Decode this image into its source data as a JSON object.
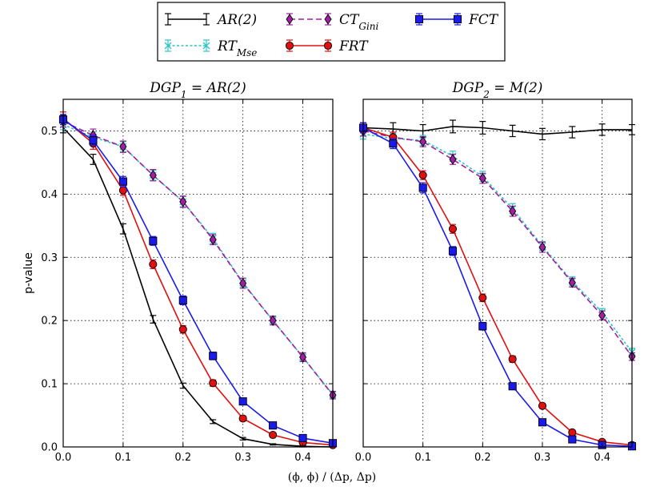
{
  "chart_data": {
    "type": "line",
    "xlabel": "(ϕ, ϕ) / (Δp, Δp)",
    "ylabel": "p-value",
    "xlim": [
      0.0,
      0.45
    ],
    "ylim": [
      0.0,
      0.55
    ],
    "x_ticks": [
      "0.0",
      "0.1",
      "0.2",
      "0.3",
      "0.4"
    ],
    "y_ticks": [
      "0.0",
      "0.1",
      "0.2",
      "0.3",
      "0.4",
      "0.5"
    ],
    "grid": true,
    "legend_position": "top-center",
    "legend": [
      {
        "key": "ar2",
        "name": "AR(2)",
        "base": "AR(2)",
        "sub": "",
        "color": "#000000",
        "marker": "none",
        "dash": false
      },
      {
        "key": "rt",
        "name": "RT_Mse",
        "base": "RT",
        "sub": "Mse",
        "color": "#2ec4c4",
        "marker": "x",
        "dash": true
      },
      {
        "key": "ct",
        "name": "CT_Gini",
        "base": "CT",
        "sub": "Gini",
        "color": "#a020a0",
        "marker": "diamond",
        "dash": true
      },
      {
        "key": "frt",
        "name": "FRT",
        "base": "FRT",
        "sub": "",
        "color": "#e01010",
        "marker": "circle",
        "dash": false
      },
      {
        "key": "fct",
        "name": "FCT",
        "base": "FCT",
        "sub": "",
        "color": "#1a1aee",
        "marker": "square",
        "dash": false
      }
    ],
    "panels": [
      {
        "title_main": "DGP",
        "title_sub": "1",
        "title_rest": " = AR(2)",
        "series": [
          {
            "key": "ar2",
            "x": [
              0.0,
              0.05,
              0.1,
              0.15,
              0.2,
              0.25,
              0.3,
              0.35,
              0.4,
              0.45
            ],
            "y": [
              0.505,
              0.455,
              0.345,
              0.202,
              0.097,
              0.04,
              0.013,
              0.004,
              0.001,
              0.0
            ],
            "err": [
              0.008,
              0.008,
              0.008,
              0.006,
              0.004,
              0.003,
              0.002,
              0.001,
              0.001,
              0.0
            ]
          },
          {
            "key": "rt",
            "x": [
              0.0,
              0.05,
              0.1,
              0.15,
              0.2,
              0.25,
              0.3,
              0.35,
              0.4,
              0.45
            ],
            "y": [
              0.51,
              0.49,
              0.475,
              0.43,
              0.388,
              0.33,
              0.26,
              0.2,
              0.142,
              0.083
            ],
            "err": [
              0.008,
              0.008,
              0.008,
              0.008,
              0.008,
              0.008,
              0.007,
              0.006,
              0.006,
              0.005
            ]
          },
          {
            "key": "ct",
            "x": [
              0.0,
              0.05,
              0.1,
              0.15,
              0.2,
              0.25,
              0.3,
              0.35,
              0.4,
              0.45
            ],
            "y": [
              0.515,
              0.493,
              0.475,
              0.43,
              0.388,
              0.328,
              0.259,
              0.2,
              0.142,
              0.082
            ],
            "err": [
              0.009,
              0.01,
              0.009,
              0.009,
              0.009,
              0.008,
              0.008,
              0.007,
              0.007,
              0.006
            ]
          },
          {
            "key": "frt",
            "x": [
              0.0,
              0.05,
              0.1,
              0.15,
              0.2,
              0.25,
              0.3,
              0.35,
              0.4,
              0.45
            ],
            "y": [
              0.52,
              0.48,
              0.406,
              0.289,
              0.186,
              0.101,
              0.045,
              0.019,
              0.007,
              0.003
            ],
            "err": [
              0.01,
              0.009,
              0.008,
              0.007,
              0.006,
              0.005,
              0.004,
              0.003,
              0.002,
              0.001
            ]
          },
          {
            "key": "fct",
            "x": [
              0.0,
              0.05,
              0.1,
              0.15,
              0.2,
              0.25,
              0.3,
              0.35,
              0.4,
              0.45
            ],
            "y": [
              0.518,
              0.485,
              0.42,
              0.326,
              0.232,
              0.144,
              0.072,
              0.034,
              0.014,
              0.006
            ],
            "err": [
              0.008,
              0.008,
              0.008,
              0.007,
              0.007,
              0.006,
              0.005,
              0.004,
              0.003,
              0.002
            ]
          }
        ]
      },
      {
        "title_main": "DGP",
        "title_sub": "2",
        "title_rest": " = M(2)",
        "series": [
          {
            "key": "ar2",
            "x": [
              0.0,
              0.05,
              0.1,
              0.15,
              0.2,
              0.25,
              0.3,
              0.35,
              0.4,
              0.45
            ],
            "y": [
              0.505,
              0.503,
              0.5,
              0.507,
              0.505,
              0.5,
              0.495,
              0.498,
              0.502,
              0.502
            ],
            "err": [
              0.008,
              0.01,
              0.01,
              0.01,
              0.01,
              0.009,
              0.009,
              0.009,
              0.009,
              0.008
            ]
          },
          {
            "key": "rt",
            "x": [
              0.0,
              0.05,
              0.1,
              0.15,
              0.2,
              0.25,
              0.3,
              0.35,
              0.4,
              0.45
            ],
            "y": [
              0.495,
              0.488,
              0.485,
              0.46,
              0.428,
              0.377,
              0.318,
              0.262,
              0.213,
              0.15
            ],
            "err": [
              0.008,
              0.008,
              0.008,
              0.008,
              0.008,
              0.008,
              0.007,
              0.007,
              0.006,
              0.006
            ]
          },
          {
            "key": "ct",
            "x": [
              0.0,
              0.05,
              0.1,
              0.15,
              0.2,
              0.25,
              0.3,
              0.35,
              0.4,
              0.45
            ],
            "y": [
              0.5,
              0.49,
              0.483,
              0.455,
              0.425,
              0.373,
              0.316,
              0.26,
              0.208,
              0.143
            ],
            "err": [
              0.008,
              0.008,
              0.008,
              0.008,
              0.008,
              0.008,
              0.008,
              0.007,
              0.007,
              0.006
            ]
          },
          {
            "key": "frt",
            "x": [
              0.0,
              0.05,
              0.1,
              0.15,
              0.2,
              0.25,
              0.3,
              0.35,
              0.4,
              0.45
            ],
            "y": [
              0.505,
              0.49,
              0.43,
              0.345,
              0.236,
              0.139,
              0.065,
              0.023,
              0.008,
              0.003
            ],
            "err": [
              0.008,
              0.008,
              0.007,
              0.007,
              0.006,
              0.005,
              0.004,
              0.003,
              0.002,
              0.001
            ]
          },
          {
            "key": "fct",
            "x": [
              0.0,
              0.05,
              0.1,
              0.15,
              0.2,
              0.25,
              0.3,
              0.35,
              0.4,
              0.45
            ],
            "y": [
              0.505,
              0.48,
              0.41,
              0.31,
              0.191,
              0.096,
              0.039,
              0.012,
              0.003,
              0.001
            ],
            "err": [
              0.008,
              0.008,
              0.008,
              0.007,
              0.006,
              0.005,
              0.004,
              0.003,
              0.002,
              0.001
            ]
          }
        ]
      }
    ]
  }
}
